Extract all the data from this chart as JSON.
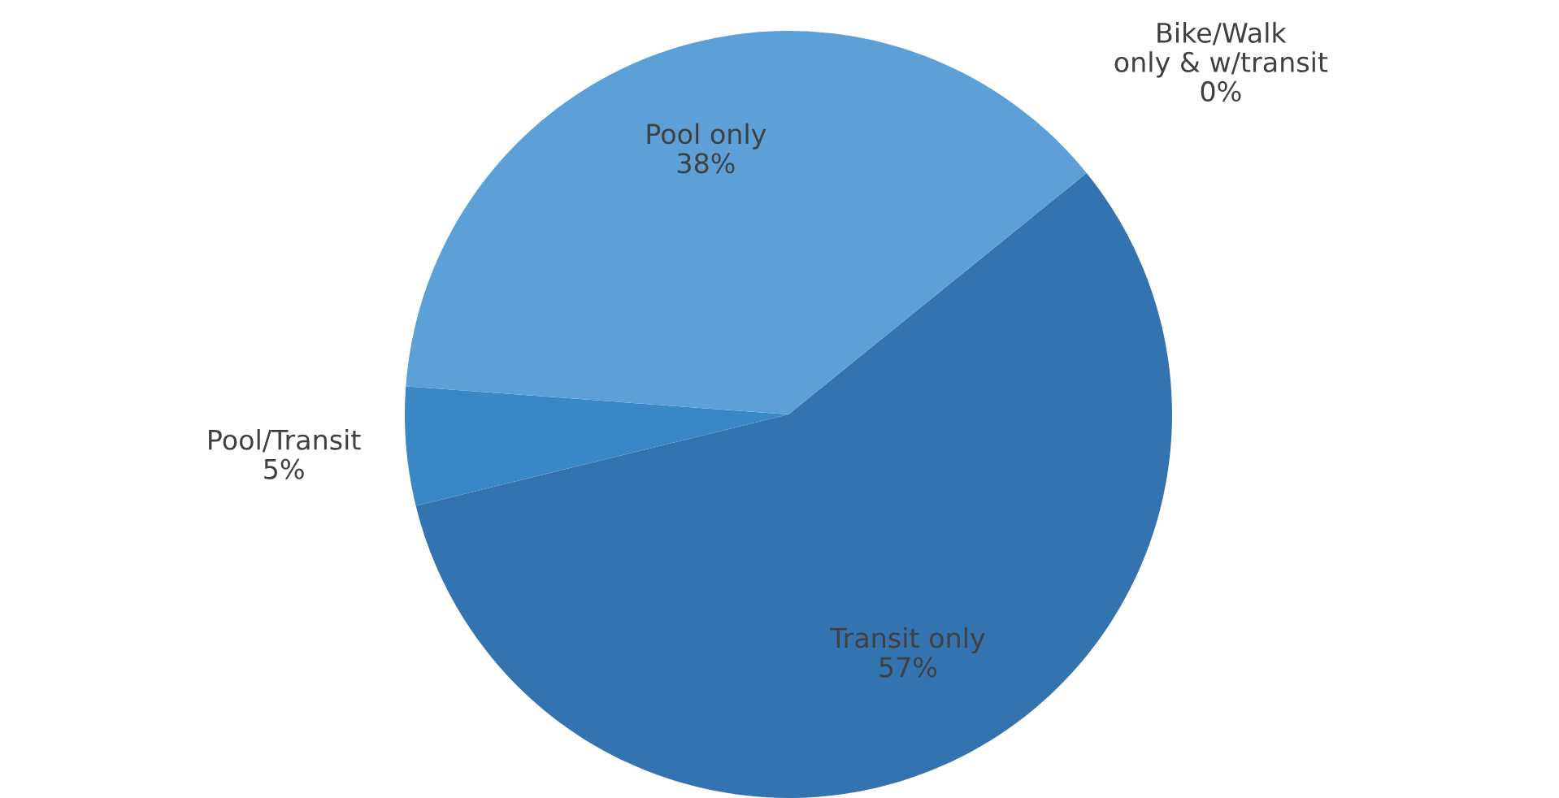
{
  "chart_data": {
    "type": "pie",
    "categories": [
      "Transit only",
      "Pool/Transit",
      "Pool only",
      "Bike/Walk\nonly & w/transit"
    ],
    "values": [
      57,
      5,
      38,
      0
    ],
    "value_labels": [
      "57%",
      "5%",
      "38%",
      "0%"
    ],
    "colors": [
      "#3273b0",
      "#3a87c6",
      "#5d9fd7",
      "#8fbbe3"
    ]
  }
}
